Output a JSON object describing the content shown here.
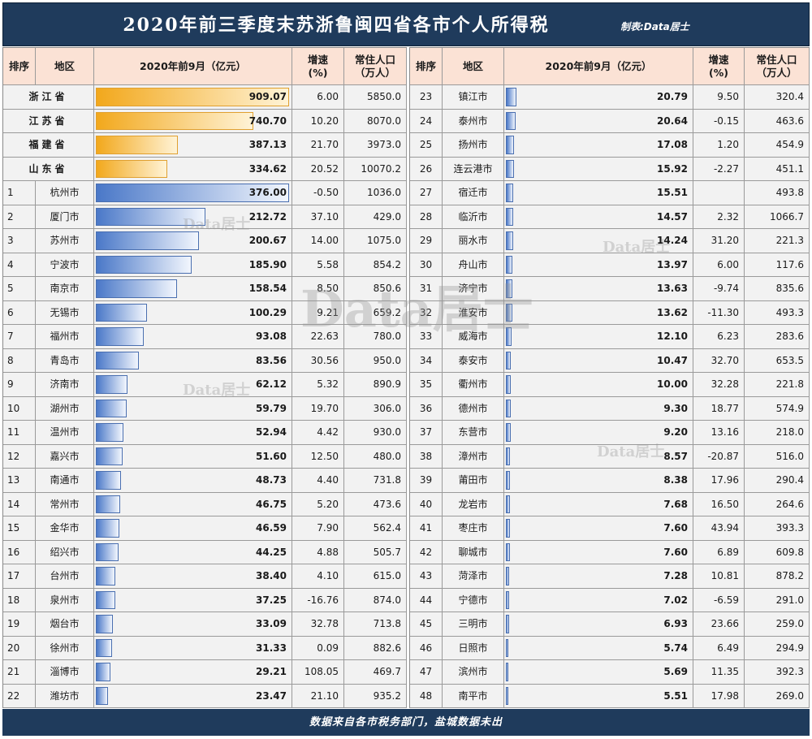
{
  "title": "2020年前三季度末苏浙鲁闽四省各市个人所得税",
  "credit": "制表:Data居士",
  "footer": "数据来自各市税务部门，盐城数据未出",
  "watermark": "Data居士",
  "colors": {
    "header_bar": "#1f3b5c",
    "header_cell": "#fbe2d5",
    "bar_city": "#4a78c8",
    "bar_province": "#f2a81c"
  },
  "headers": {
    "rank": "排序",
    "region": "地区",
    "value": "2020年前9月（亿元）",
    "growth_l1": "增速",
    "growth_l2": "(%)",
    "pop_l1": "常住人口",
    "pop_l2": "（万人）"
  },
  "chart_data": {
    "type": "table",
    "bar_max": 909.07,
    "provinces": [
      {
        "name": "浙江省",
        "value": 909.07,
        "growth": "6.00",
        "pop": "5850.0"
      },
      {
        "name": "江苏省",
        "value": 740.7,
        "growth": "10.20",
        "pop": "8070.0"
      },
      {
        "name": "福建省",
        "value": 387.13,
        "growth": "21.70",
        "pop": "3973.0"
      },
      {
        "name": "山东省",
        "value": 334.62,
        "growth": "20.52",
        "pop": "10070.2"
      }
    ],
    "cities_left": [
      {
        "rank": "1",
        "name": "杭州市",
        "value": 376.0,
        "growth": "-0.50",
        "pop": "1036.0"
      },
      {
        "rank": "2",
        "name": "厦门市",
        "value": 212.72,
        "growth": "37.10",
        "pop": "429.0"
      },
      {
        "rank": "3",
        "name": "苏州市",
        "value": 200.67,
        "growth": "14.00",
        "pop": "1075.0"
      },
      {
        "rank": "4",
        "name": "宁波市",
        "value": 185.9,
        "growth": "5.58",
        "pop": "854.2"
      },
      {
        "rank": "5",
        "name": "南京市",
        "value": 158.54,
        "growth": "8.50",
        "pop": "850.6"
      },
      {
        "rank": "6",
        "name": "无锡市",
        "value": 100.29,
        "growth": "9.21",
        "pop": "659.2"
      },
      {
        "rank": "7",
        "name": "福州市",
        "value": 93.08,
        "growth": "22.63",
        "pop": "780.0"
      },
      {
        "rank": "8",
        "name": "青岛市",
        "value": 83.56,
        "growth": "30.56",
        "pop": "950.0"
      },
      {
        "rank": "9",
        "name": "济南市",
        "value": 62.12,
        "growth": "5.32",
        "pop": "890.9"
      },
      {
        "rank": "10",
        "name": "湖州市",
        "value": 59.79,
        "growth": "19.70",
        "pop": "306.0"
      },
      {
        "rank": "11",
        "name": "温州市",
        "value": 52.94,
        "growth": "4.42",
        "pop": "930.0"
      },
      {
        "rank": "12",
        "name": "嘉兴市",
        "value": 51.6,
        "growth": "12.50",
        "pop": "480.0"
      },
      {
        "rank": "13",
        "name": "南通市",
        "value": 48.73,
        "growth": "4.40",
        "pop": "731.8"
      },
      {
        "rank": "14",
        "name": "常州市",
        "value": 46.75,
        "growth": "5.20",
        "pop": "473.6"
      },
      {
        "rank": "15",
        "name": "金华市",
        "value": 46.59,
        "growth": "7.90",
        "pop": "562.4"
      },
      {
        "rank": "16",
        "name": "绍兴市",
        "value": 44.25,
        "growth": "4.88",
        "pop": "505.7"
      },
      {
        "rank": "17",
        "name": "台州市",
        "value": 38.4,
        "growth": "4.10",
        "pop": "615.0"
      },
      {
        "rank": "18",
        "name": "泉州市",
        "value": 37.25,
        "growth": "-16.76",
        "pop": "874.0"
      },
      {
        "rank": "19",
        "name": "烟台市",
        "value": 33.09,
        "growth": "32.78",
        "pop": "713.8"
      },
      {
        "rank": "20",
        "name": "徐州市",
        "value": 31.33,
        "growth": "0.09",
        "pop": "882.6"
      },
      {
        "rank": "21",
        "name": "淄博市",
        "value": 29.21,
        "growth": "108.05",
        "pop": "469.7"
      },
      {
        "rank": "22",
        "name": "潍坊市",
        "value": 23.47,
        "growth": "21.10",
        "pop": "935.2"
      }
    ],
    "cities_right": [
      {
        "rank": "23",
        "name": "镇江市",
        "value": 20.79,
        "growth": "9.50",
        "pop": "320.4"
      },
      {
        "rank": "24",
        "name": "泰州市",
        "value": 20.64,
        "growth": "-0.15",
        "pop": "463.6"
      },
      {
        "rank": "25",
        "name": "扬州市",
        "value": 17.08,
        "growth": "1.20",
        "pop": "454.9"
      },
      {
        "rank": "26",
        "name": "连云港市",
        "value": 15.92,
        "growth": "-2.27",
        "pop": "451.1"
      },
      {
        "rank": "27",
        "name": "宿迁市",
        "value": 15.51,
        "growth": "",
        "pop": "493.8"
      },
      {
        "rank": "28",
        "name": "临沂市",
        "value": 14.57,
        "growth": "2.32",
        "pop": "1066.7"
      },
      {
        "rank": "29",
        "name": "丽水市",
        "value": 14.24,
        "growth": "31.20",
        "pop": "221.3"
      },
      {
        "rank": "30",
        "name": "舟山市",
        "value": 13.97,
        "growth": "6.00",
        "pop": "117.6"
      },
      {
        "rank": "31",
        "name": "济宁市",
        "value": 13.63,
        "growth": "-9.74",
        "pop": "835.6"
      },
      {
        "rank": "32",
        "name": "淮安市",
        "value": 13.62,
        "growth": "-11.30",
        "pop": "493.3"
      },
      {
        "rank": "33",
        "name": "威海市",
        "value": 12.1,
        "growth": "6.23",
        "pop": "283.6"
      },
      {
        "rank": "34",
        "name": "泰安市",
        "value": 10.47,
        "growth": "32.70",
        "pop": "653.5"
      },
      {
        "rank": "35",
        "name": "衢州市",
        "value": 10.0,
        "growth": "32.28",
        "pop": "221.8"
      },
      {
        "rank": "36",
        "name": "德州市",
        "value": 9.3,
        "growth": "18.77",
        "pop": "574.9"
      },
      {
        "rank": "37",
        "name": "东营市",
        "value": 9.2,
        "growth": "13.16",
        "pop": "218.0"
      },
      {
        "rank": "38",
        "name": "漳州市",
        "value": 8.57,
        "growth": "-20.87",
        "pop": "516.0"
      },
      {
        "rank": "39",
        "name": "莆田市",
        "value": 8.38,
        "growth": "17.96",
        "pop": "290.4"
      },
      {
        "rank": "40",
        "name": "龙岩市",
        "value": 7.68,
        "growth": "16.50",
        "pop": "264.6"
      },
      {
        "rank": "41",
        "name": "枣庄市",
        "value": 7.6,
        "growth": "43.94",
        "pop": "393.3"
      },
      {
        "rank": "42",
        "name": "聊城市",
        "value": 7.6,
        "growth": "6.89",
        "pop": "609.8"
      },
      {
        "rank": "43",
        "name": "菏泽市",
        "value": 7.28,
        "growth": "10.81",
        "pop": "878.2"
      },
      {
        "rank": "44",
        "name": "宁德市",
        "value": 7.02,
        "growth": "-6.59",
        "pop": "291.0"
      },
      {
        "rank": "45",
        "name": "三明市",
        "value": 6.93,
        "growth": "23.66",
        "pop": "259.0"
      },
      {
        "rank": "46",
        "name": "日照市",
        "value": 5.74,
        "growth": "6.49",
        "pop": "294.9"
      },
      {
        "rank": "47",
        "name": "滨州市",
        "value": 5.69,
        "growth": "11.35",
        "pop": "392.3"
      },
      {
        "rank": "48",
        "name": "南平市",
        "value": 5.51,
        "growth": "17.98",
        "pop": "269.0"
      }
    ]
  }
}
